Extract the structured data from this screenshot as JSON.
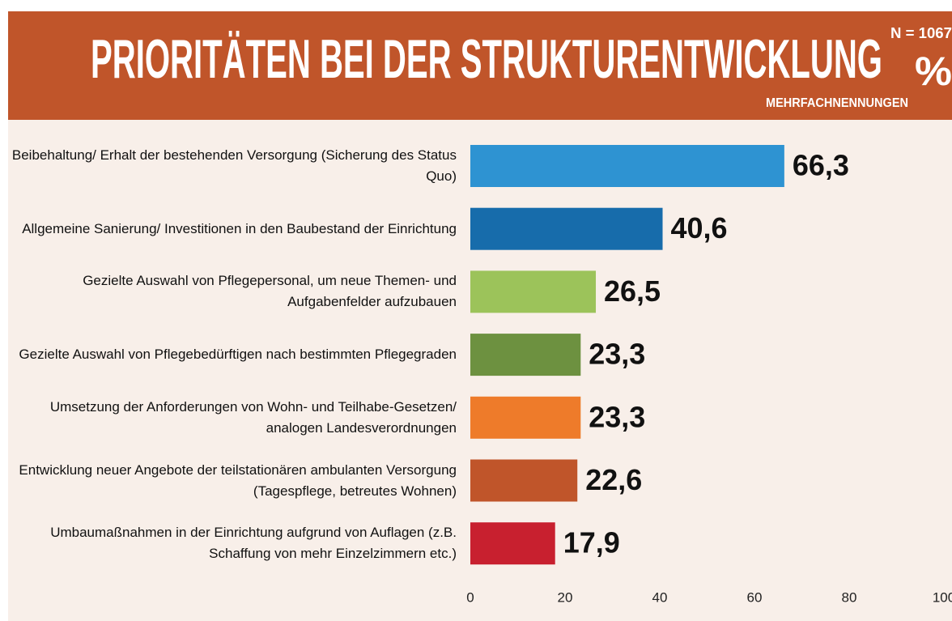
{
  "chart_data": {
    "type": "barh",
    "title": "PRIORITÄTEN BEI DER STRUKTURENTWICKLUNG",
    "subtitle": "MEHRFACHNENNUNGEN",
    "annotations": [
      "N = 1067",
      "%"
    ],
    "categories": [
      "Beibehaltung/ Erhalt der bestehenden Versorgung (Sicherung des Status Quo)",
      "Allgemeine Sanierung/ Investitionen in den Baubestand der Einrichtung",
      "Gezielte Auswahl von Pflegepersonal, um neue Themen- und Aufgabenfelder aufzubauen",
      "Gezielte Auswahl von Pflegebedürftigen nach bestimmten Pflegegraden",
      "Umsetzung der Anforderungen von Wohn- und Teilhabe-Gesetzen/ analogen Landesverordnungen",
      "Entwicklung neuer Angebote der teilstationären ambulanten Versorgung (Tagespflege, betreutes Wohnen)",
      "Umbaumaßnahmen in der Einrichtung aufgrund von Auflagen (z.B. Schaffung von mehr Einzelzimmern etc.)"
    ],
    "values": [
      66.3,
      40.6,
      26.5,
      23.3,
      23.3,
      22.6,
      17.9
    ],
    "value_labels": [
      "66,3",
      "40,6",
      "26,5",
      "23,3",
      "23,3",
      "22,6",
      "17,9"
    ],
    "colors": [
      "#2e93d2",
      "#176cab",
      "#9cc35a",
      "#6d9140",
      "#ee7b2a",
      "#c0552a",
      "#c8202f"
    ],
    "xlim": [
      0,
      100
    ],
    "xticks": [
      0,
      20,
      40,
      60,
      80,
      100
    ]
  }
}
